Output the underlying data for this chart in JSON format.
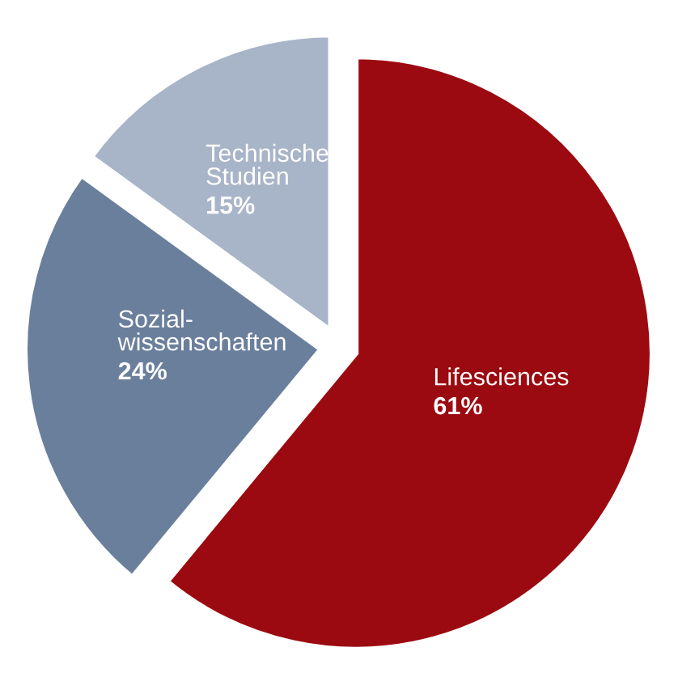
{
  "chart_data": {
    "type": "pie",
    "categories": [
      "Lifesciences",
      "Sozial-\nwissenschaften",
      "Technische\nStudien"
    ],
    "values": [
      61,
      24,
      15
    ],
    "colors": [
      "#9b0a10",
      "#6a7f9c",
      "#a8b4c8"
    ],
    "value_labels": [
      "61%",
      "24%",
      "15%"
    ],
    "legend": false
  }
}
